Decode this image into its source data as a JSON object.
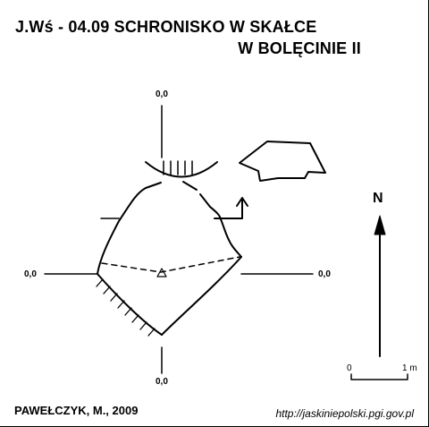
{
  "title": {
    "line1": "J.Wś - 04.09 SCHRONISKO W SKAŁCE",
    "line2": "W BOLĘCINIE II"
  },
  "elevations": {
    "top": "0,0",
    "left": "0,0",
    "right": "0,0",
    "bottom": "0,0"
  },
  "north_arrow": {
    "label": "N"
  },
  "scale_bar": {
    "start_label": "0",
    "end_label": "1 m"
  },
  "author": "PAWEŁCZYK, M., 2009",
  "source": "http://jaskiniepolski.pgi.gov.pl"
}
